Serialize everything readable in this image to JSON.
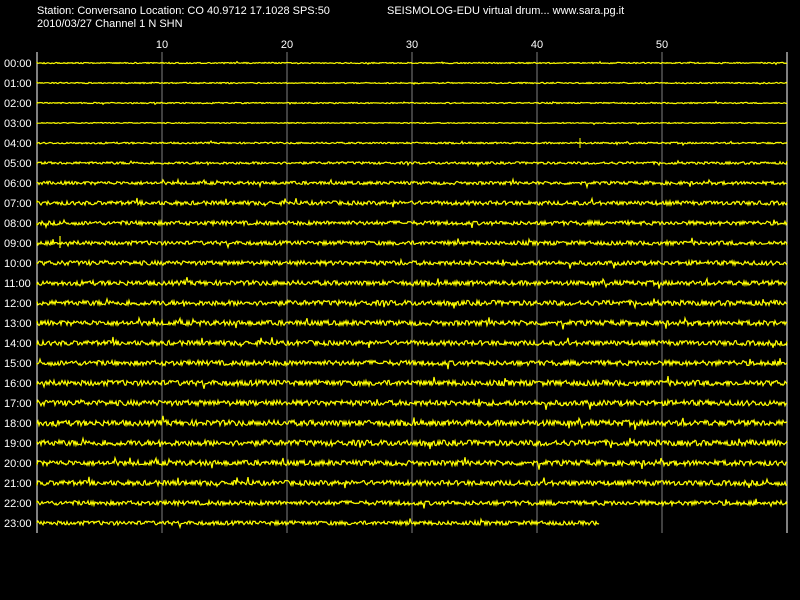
{
  "header": {
    "station_line": "Station: Conversano Location: CO 40.9712 17.1028 SPS:50",
    "app_line": "SEISMOLOG-EDU virtual drum... www.sara.pg.it",
    "date_line": "2010/03/27  Channel 1 N SHN"
  },
  "colors": {
    "background": "#000000",
    "trace": "#ffff00",
    "grid": "#808080",
    "text": "#ffffff"
  },
  "chart_data": {
    "type": "line",
    "title": "",
    "x_unit": "minutes",
    "xlim": [
      0,
      60
    ],
    "x_ticks": [
      10,
      20,
      30,
      40,
      50
    ],
    "x_tick_labels": [
      "10",
      "20",
      "30",
      "40",
      "50"
    ],
    "hour_labels": [
      "00:00",
      "01:00",
      "02:00",
      "03:00",
      "04:00",
      "05:00",
      "06:00",
      "07:00",
      "08:00",
      "09:00",
      "10:00",
      "11:00",
      "12:00",
      "13:00",
      "14:00",
      "15:00",
      "16:00",
      "17:00",
      "18:00",
      "19:00",
      "20:00",
      "21:00",
      "22:00",
      "23:00"
    ],
    "rows_end_minute": [
      60,
      60,
      60,
      60,
      60,
      60,
      60,
      60,
      60,
      60,
      60,
      60,
      60,
      60,
      60,
      60,
      60,
      60,
      60,
      60,
      60,
      60,
      60,
      45
    ],
    "noise_level": [
      0.6,
      0.6,
      0.6,
      0.5,
      0.8,
      1.2,
      1.6,
      2.0,
      2.0,
      2.0,
      2.2,
      2.3,
      2.5,
      2.5,
      2.4,
      2.5,
      2.7,
      2.7,
      2.8,
      2.8,
      2.6,
      2.5,
      2.2,
      2.0
    ],
    "grid": true
  }
}
